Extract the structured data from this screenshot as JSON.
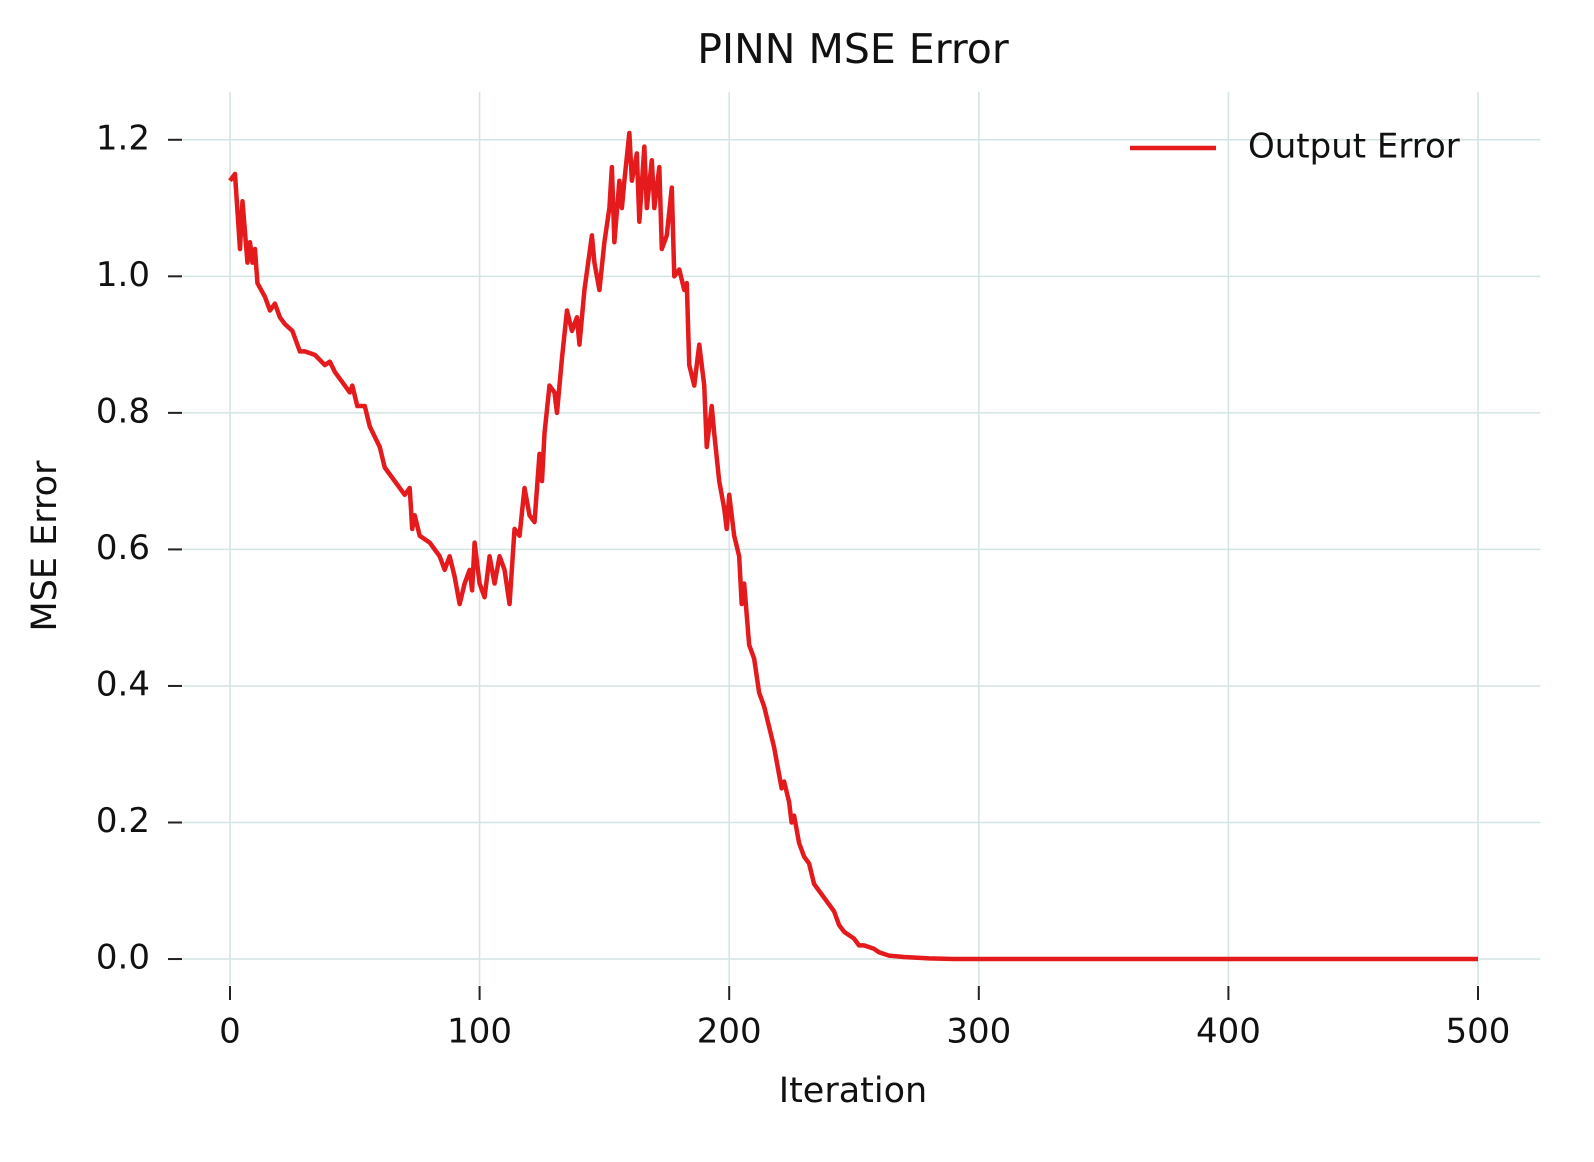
{
  "chart_data": {
    "type": "line",
    "title": "PINN MSE Error",
    "x_label": "Iteration",
    "y_label": "MSE Error",
    "x": [
      0,
      2,
      4,
      5,
      7,
      8,
      9,
      10,
      11,
      14,
      16,
      18,
      20,
      22,
      25,
      27,
      28,
      30,
      34,
      38,
      40,
      42,
      46,
      48,
      49,
      51,
      54,
      56,
      60,
      62,
      66,
      70,
      72,
      73,
      74,
      76,
      80,
      84,
      86,
      88,
      90,
      92,
      94,
      96,
      97,
      98,
      100,
      102,
      104,
      106,
      108,
      110,
      112,
      114,
      116,
      118,
      120,
      122,
      124,
      125,
      126,
      128,
      130,
      131,
      133,
      135,
      137,
      139,
      140,
      142,
      145,
      146,
      148,
      150,
      152,
      153,
      154,
      156,
      157,
      158,
      160,
      161,
      163,
      164,
      166,
      167,
      169,
      170,
      172,
      173,
      175,
      177,
      178,
      180,
      182,
      183,
      184,
      186,
      188,
      190,
      191,
      193,
      194,
      196,
      198,
      199,
      200,
      202,
      204,
      205,
      206,
      208,
      210,
      212,
      214,
      216,
      218,
      220,
      221,
      222,
      224,
      225,
      226,
      228,
      230,
      232,
      234,
      236,
      238,
      240,
      242,
      244,
      246,
      250,
      252,
      254,
      258,
      260,
      264,
      270,
      280,
      290,
      300,
      400,
      500
    ],
    "series": [
      {
        "name": "Output Error",
        "color": "#e41a1c",
        "values": [
          1.14,
          1.15,
          1.04,
          1.11,
          1.02,
          1.05,
          1.02,
          1.04,
          0.99,
          0.97,
          0.95,
          0.96,
          0.94,
          0.93,
          0.92,
          0.9,
          0.89,
          0.89,
          0.885,
          0.87,
          0.875,
          0.86,
          0.84,
          0.83,
          0.84,
          0.81,
          0.81,
          0.78,
          0.75,
          0.72,
          0.7,
          0.68,
          0.69,
          0.63,
          0.65,
          0.62,
          0.61,
          0.59,
          0.57,
          0.59,
          0.56,
          0.52,
          0.55,
          0.57,
          0.54,
          0.61,
          0.55,
          0.53,
          0.59,
          0.55,
          0.59,
          0.57,
          0.52,
          0.63,
          0.62,
          0.69,
          0.65,
          0.64,
          0.74,
          0.7,
          0.77,
          0.84,
          0.83,
          0.8,
          0.88,
          0.95,
          0.92,
          0.94,
          0.9,
          0.98,
          1.06,
          1.02,
          0.98,
          1.05,
          1.1,
          1.16,
          1.05,
          1.14,
          1.1,
          1.14,
          1.21,
          1.14,
          1.18,
          1.08,
          1.19,
          1.1,
          1.17,
          1.1,
          1.16,
          1.04,
          1.06,
          1.13,
          1.0,
          1.01,
          0.98,
          0.99,
          0.87,
          0.84,
          0.9,
          0.84,
          0.75,
          0.81,
          0.77,
          0.7,
          0.66,
          0.63,
          0.68,
          0.62,
          0.59,
          0.52,
          0.55,
          0.46,
          0.44,
          0.39,
          0.37,
          0.34,
          0.31,
          0.27,
          0.25,
          0.26,
          0.23,
          0.2,
          0.21,
          0.17,
          0.15,
          0.14,
          0.11,
          0.1,
          0.09,
          0.08,
          0.07,
          0.05,
          0.04,
          0.03,
          0.02,
          0.02,
          0.015,
          0.01,
          0.005,
          0.003,
          0.001,
          0,
          0,
          0,
          0
        ]
      }
    ],
    "xlim": [
      -25,
      525
    ],
    "ylim": [
      -0.06,
      1.27
    ],
    "xticks": [
      0,
      100,
      200,
      300,
      400,
      500
    ],
    "yticks": [
      {
        "value": 0,
        "label": "0.0"
      },
      0.2,
      0.4,
      0.6,
      0.8,
      {
        "value": 1,
        "label": "1.0"
      },
      1.2
    ],
    "grid": true,
    "legend": "upper right"
  }
}
